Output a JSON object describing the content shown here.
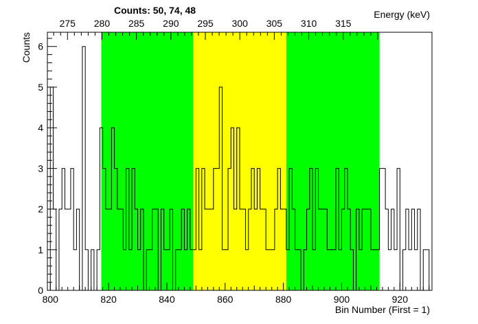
{
  "chart_data": {
    "type": "histogram",
    "title": "Counts:   50,   74,   48",
    "xlabel": "Bin Number (First = 1)",
    "ylabel": "Counts",
    "top_axis_label": "Energy (keV)",
    "xlim": [
      799,
      931
    ],
    "ylim": [
      0,
      6.35
    ],
    "x_ticks": [
      800,
      820,
      840,
      860,
      880,
      900,
      920
    ],
    "y_ticks": [
      0,
      1,
      2,
      3,
      4,
      5,
      6
    ],
    "energy_ticks": [
      275,
      280,
      285,
      290,
      295,
      300,
      305,
      310,
      315
    ],
    "energy_calibration": {
      "bin_at_275": 805.9,
      "bins_per_5kev": 11.83
    },
    "regions": [
      {
        "name": "left-background",
        "x_start": 817.5,
        "x_end": 849,
        "color": "#00ff00"
      },
      {
        "name": "peak",
        "x_start": 849,
        "x_end": 881,
        "color": "#ffff00"
      },
      {
        "name": "right-background",
        "x_start": 881,
        "x_end": 913,
        "color": "#00ff00"
      }
    ],
    "bin_start": 799,
    "bin_width": 1,
    "counts": [
      0,
      5,
      2,
      0,
      2,
      3,
      2,
      2,
      3,
      1,
      2,
      0,
      6,
      1,
      0,
      1,
      0,
      1,
      4,
      3,
      2,
      2,
      4,
      3,
      2,
      2,
      1,
      3,
      1,
      3,
      2,
      1,
      2,
      0,
      1,
      1,
      2,
      2,
      0,
      2,
      1,
      1,
      2,
      0,
      1,
      1,
      2,
      1,
      2,
      1,
      1,
      3,
      1,
      3,
      2,
      2,
      2,
      3,
      3,
      5,
      1,
      1,
      3,
      4,
      2,
      4,
      2,
      2,
      1,
      2,
      3,
      2,
      3,
      2,
      2,
      1,
      1,
      1,
      2,
      3,
      2,
      2,
      1,
      3,
      2,
      1,
      1,
      0,
      1,
      2,
      3,
      1,
      3,
      2,
      2,
      2,
      1,
      1,
      1,
      3,
      1,
      2,
      3,
      2,
      1,
      0,
      2,
      1,
      2,
      2,
      2,
      1,
      1,
      1,
      3,
      3,
      2,
      1,
      2,
      1,
      3,
      0,
      1,
      2,
      1,
      2,
      1,
      2,
      0,
      1,
      1,
      0
    ]
  }
}
